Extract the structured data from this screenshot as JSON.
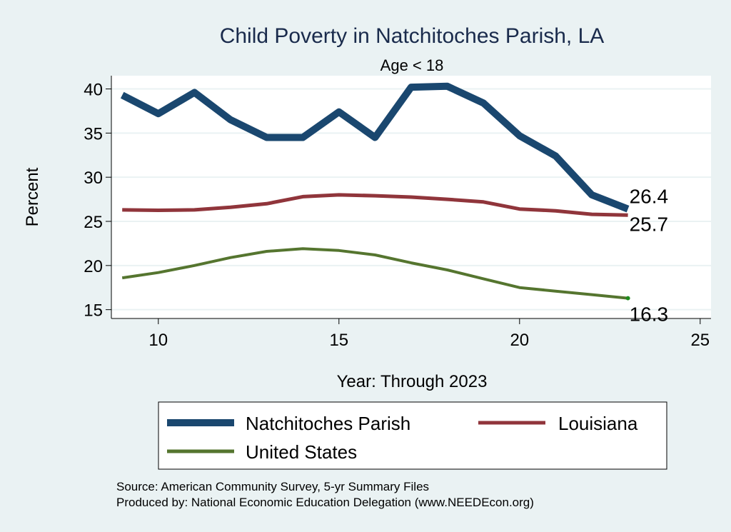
{
  "chart_data": {
    "type": "line",
    "title": "Child Poverty in Natchitoches Parish, LA",
    "subtitle": "Age < 18",
    "xlabel": "Year: Through 2023",
    "ylabel": "Percent",
    "xlim": [
      8.7,
      25.3
    ],
    "ylim": [
      14,
      41.5
    ],
    "xticks": [
      10,
      15,
      20,
      25
    ],
    "yticks": [
      15,
      20,
      25,
      30,
      35,
      40
    ],
    "x": [
      9,
      10,
      11,
      12,
      13,
      14,
      15,
      16,
      17,
      18,
      19,
      20,
      21,
      22,
      23
    ],
    "series": [
      {
        "name": "Natchitoches Parish",
        "color": "#1a476f",
        "values": [
          39.3,
          37.2,
          39.6,
          36.5,
          34.5,
          34.5,
          37.4,
          34.5,
          40.2,
          40.3,
          38.4,
          34.7,
          32.4,
          28.0,
          26.4
        ],
        "end_label": "26.4"
      },
      {
        "name": "Louisiana",
        "color": "#90353b",
        "values": [
          26.3,
          26.25,
          26.3,
          26.6,
          27.0,
          27.8,
          28.0,
          27.9,
          27.75,
          27.5,
          27.2,
          26.4,
          26.2,
          25.8,
          25.7
        ],
        "end_label": "25.7"
      },
      {
        "name": "United States",
        "color": "#55752f",
        "values": [
          18.6,
          19.2,
          20.0,
          20.9,
          21.6,
          21.9,
          21.7,
          21.2,
          20.3,
          19.5,
          18.5,
          17.5,
          17.1,
          16.7,
          16.3
        ],
        "end_label": "16.3"
      }
    ],
    "legend": {
      "position": "bottom",
      "entries": [
        "Natchitoches Parish",
        "Louisiana",
        "United States"
      ]
    }
  },
  "notes": {
    "source": "Source: American Community Survey, 5-yr Summary Files",
    "produced": "Produced by: National Economic Education Delegation (www.NEEDEcon.org)"
  },
  "colors": {
    "background": "#eaf2f3",
    "plot_background": "#ffffff",
    "grid": "#eaf2f3",
    "title": "#1a2b4c"
  }
}
